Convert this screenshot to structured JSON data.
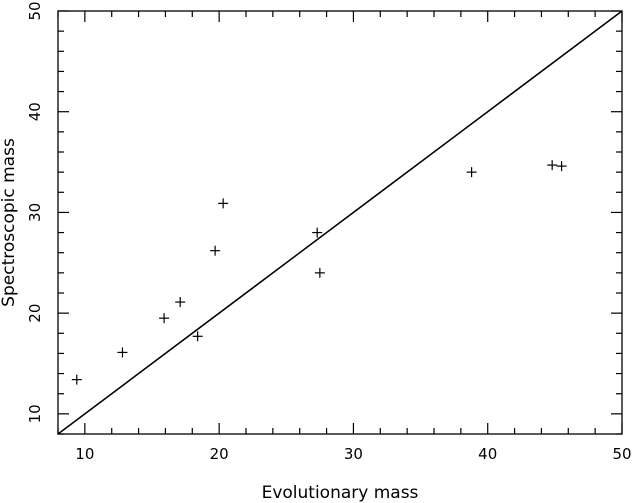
{
  "chart_data": {
    "type": "scatter",
    "title": "",
    "xlabel": "Evolutionary mass",
    "ylabel": "Spectroscopic mass",
    "xlim": [
      8,
      50
    ],
    "ylim": [
      8,
      50
    ],
    "xticks": [
      10,
      20,
      30,
      40,
      50
    ],
    "yticks": [
      10,
      20,
      30,
      40,
      50
    ],
    "grid": false,
    "marker": "plus",
    "reference_line": {
      "x": [
        8,
        50
      ],
      "y": [
        8,
        50
      ]
    },
    "series": [
      {
        "points": [
          {
            "x": 9.4,
            "y": 13.4
          },
          {
            "x": 12.8,
            "y": 16.1
          },
          {
            "x": 15.9,
            "y": 19.5
          },
          {
            "x": 17.1,
            "y": 21.1
          },
          {
            "x": 18.4,
            "y": 17.7
          },
          {
            "x": 19.7,
            "y": 26.2
          },
          {
            "x": 20.3,
            "y": 30.9
          },
          {
            "x": 27.3,
            "y": 28.0
          },
          {
            "x": 27.5,
            "y": 24.0
          },
          {
            "x": 38.8,
            "y": 34.0
          },
          {
            "x": 44.8,
            "y": 34.7
          },
          {
            "x": 45.5,
            "y": 34.6
          }
        ]
      }
    ]
  }
}
